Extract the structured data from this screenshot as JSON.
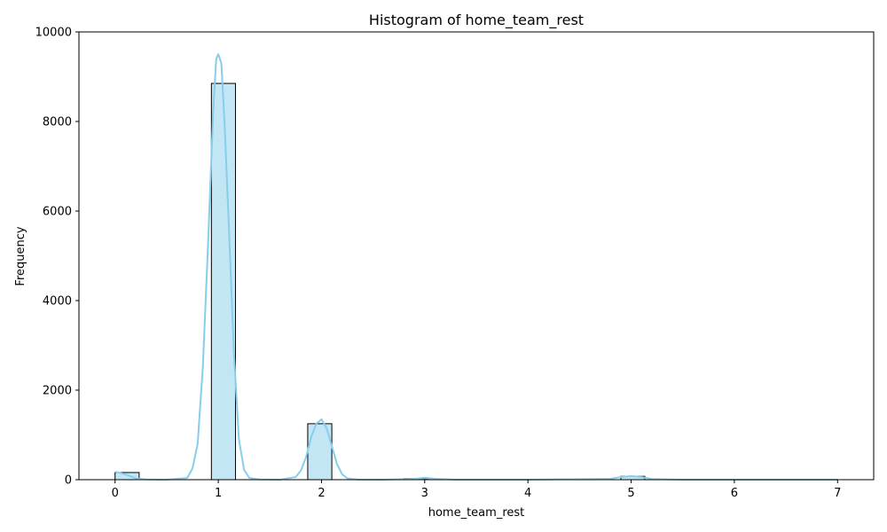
{
  "chart_data": {
    "type": "bar",
    "title": "Histogram of home_team_rest",
    "xlabel": "home_team_rest",
    "ylabel": "Frequency",
    "xlim": [
      -0.35,
      7.35
    ],
    "ylim": [
      0,
      10000
    ],
    "xticks": [
      0,
      1,
      2,
      3,
      4,
      5,
      6,
      7
    ],
    "yticks": [
      0,
      2000,
      4000,
      6000,
      8000,
      10000
    ],
    "bin_width": 0.23333,
    "bins": [
      {
        "x0": 0.0,
        "x1": 0.23333,
        "count": 160
      },
      {
        "x0": 0.93333,
        "x1": 1.16667,
        "count": 8850
      },
      {
        "x0": 1.86667,
        "x1": 2.1,
        "count": 1250
      },
      {
        "x0": 2.8,
        "x1": 3.03333,
        "count": 25
      },
      {
        "x0": 4.9,
        "x1": 5.13333,
        "count": 75
      }
    ],
    "kde": {
      "x": [
        0.0,
        0.1,
        0.2,
        0.3,
        0.5,
        0.7,
        0.75,
        0.8,
        0.85,
        0.9,
        0.95,
        0.98,
        1.0,
        1.03,
        1.06,
        1.1,
        1.15,
        1.2,
        1.25,
        1.3,
        1.4,
        1.6,
        1.75,
        1.8,
        1.85,
        1.9,
        1.95,
        2.0,
        2.05,
        2.1,
        2.15,
        2.2,
        2.25,
        2.35,
        2.6,
        2.9,
        3.0,
        3.1,
        3.3,
        4.0,
        4.8,
        4.9,
        5.0,
        5.1,
        5.2,
        5.5,
        6.0,
        7.0
      ],
      "y": [
        180,
        120,
        30,
        5,
        0,
        40,
        250,
        800,
        2500,
        5200,
        8200,
        9400,
        9500,
        9300,
        8000,
        5800,
        2900,
        900,
        220,
        40,
        5,
        0,
        60,
        200,
        500,
        950,
        1250,
        1350,
        1150,
        750,
        350,
        120,
        30,
        3,
        0,
        20,
        45,
        20,
        0,
        0,
        20,
        60,
        80,
        60,
        15,
        0,
        0,
        0
      ],
      "color": "#87ceeb"
    },
    "bar_fill": "#87ceeb",
    "bar_edge": "#000000",
    "grid": false,
    "legend": "none"
  }
}
